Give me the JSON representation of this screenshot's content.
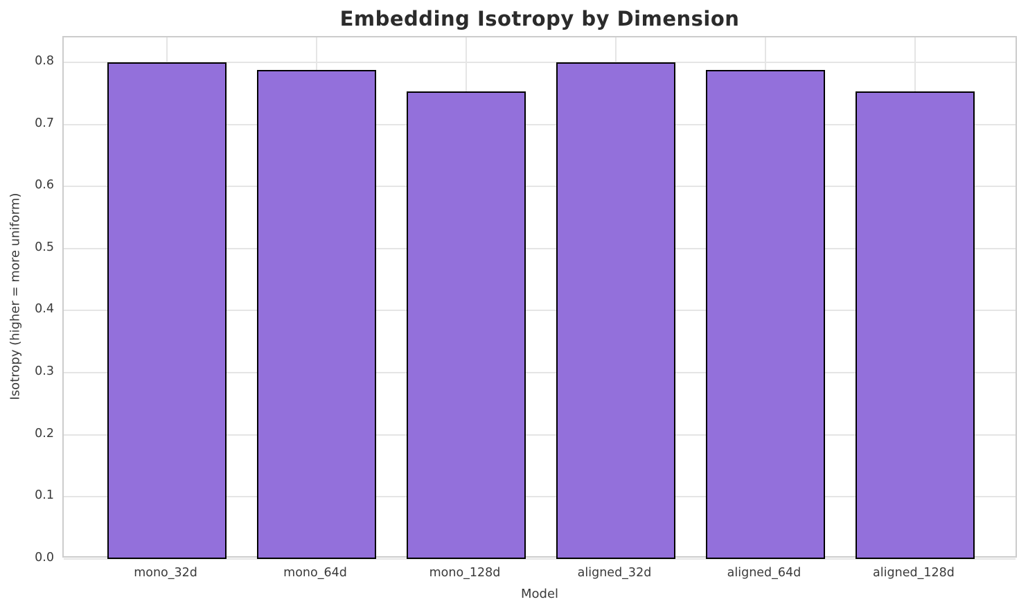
{
  "chart_data": {
    "type": "bar",
    "title": "Embedding Isotropy by Dimension",
    "xlabel": "Model",
    "ylabel": "Isotropy (higher = more uniform)",
    "categories": [
      "mono_32d",
      "mono_64d",
      "mono_128d",
      "aligned_32d",
      "aligned_64d",
      "aligned_128d"
    ],
    "values": [
      0.8,
      0.788,
      0.753,
      0.8,
      0.788,
      0.753
    ],
    "ylim": [
      0,
      0.84
    ],
    "yticks": [
      0.0,
      0.1,
      0.2,
      0.3,
      0.4,
      0.5,
      0.6,
      0.7,
      0.8
    ],
    "grid": true,
    "legend_position": "none",
    "bar_color": "#9370DB",
    "bar_edge_color": "#000000",
    "grid_color": "#e5e5e5",
    "axes_edge_color": "#cccccc",
    "bar_width_fraction": 0.8
  }
}
